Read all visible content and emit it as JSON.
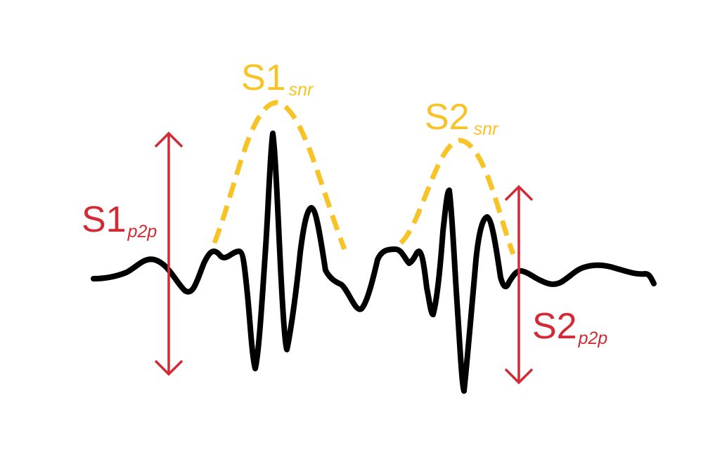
{
  "colors": {
    "signal": "#000000",
    "peak_to_peak": "#d42a35",
    "snr_envelope": "#f7c326"
  },
  "labels": {
    "s1_p2p": {
      "main": "S1",
      "sub": "p2p"
    },
    "s2_p2p": {
      "main": "S2",
      "sub": "p2p"
    },
    "s1_snr": {
      "main": "S1",
      "sub": "snr"
    },
    "s2_snr": {
      "main": "S2",
      "sub": "snr"
    }
  }
}
